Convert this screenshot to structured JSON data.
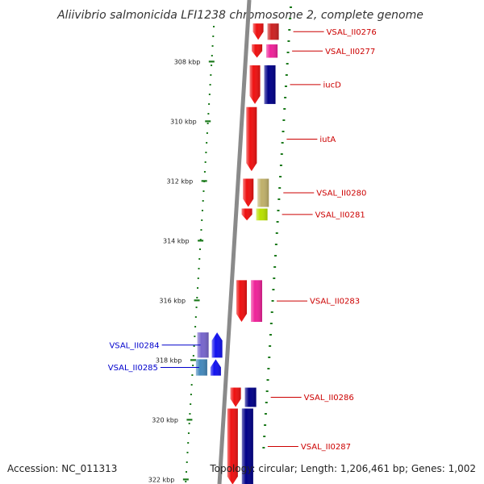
{
  "title": "Aliivibrio salmonicida LFI1238 chromosome 2, complete genome",
  "footer": {
    "accession": "Accession: NC_011313",
    "summary": "Topology: circular; Length: 1,206,461 bp; Genes: 1,002"
  },
  "colors": {
    "backbone": "#8a8a8a",
    "tick": "#1c7a1c",
    "label_forward": "#cc0000",
    "label_reverse": "#0000cc"
  },
  "axis": {
    "unit": "kbp",
    "range_kbp": [
      306.7,
      322.2
    ],
    "ticks": [
      {
        "kbp": 308,
        "label": "308 kbp"
      },
      {
        "kbp": 310,
        "label": "310 kbp"
      },
      {
        "kbp": 312,
        "label": "312 kbp"
      },
      {
        "kbp": 314,
        "label": "314 kbp"
      },
      {
        "kbp": 316,
        "label": "316 kbp"
      },
      {
        "kbp": 318,
        "label": "318 kbp"
      },
      {
        "kbp": 320,
        "label": "320 kbp"
      },
      {
        "kbp": 322,
        "label": "322 kbp"
      }
    ]
  },
  "genes": [
    {
      "id": "gene-vsal-ii0276",
      "label": "VSAL_II0276",
      "strand": "forward",
      "start_kbp": 306.7,
      "end_kbp": 307.3,
      "color": "#ee1111",
      "track_color": "#cc2222"
    },
    {
      "id": "gene-vsal-ii0277",
      "label": "VSAL_II0277",
      "strand": "forward",
      "start_kbp": 307.4,
      "end_kbp": 307.9,
      "color": "#ee1111",
      "track_color": "#ee2299"
    },
    {
      "id": "gene-iucd",
      "label": "iucD",
      "strand": "forward",
      "start_kbp": 308.1,
      "end_kbp": 309.45,
      "color": "#ee1111",
      "track_color": "#000088"
    },
    {
      "id": "gene-iuta",
      "label": "iutA",
      "strand": "forward",
      "start_kbp": 309.5,
      "end_kbp": 311.7,
      "color": "#ee1111",
      "track_color": null
    },
    {
      "id": "gene-vsal-ii0280",
      "label": "VSAL_II0280",
      "strand": "forward",
      "start_kbp": 311.9,
      "end_kbp": 312.9,
      "color": "#ee1111",
      "track_color": "#bfb06a"
    },
    {
      "id": "gene-vsal-ii0281",
      "label": "VSAL_II0281",
      "strand": "forward",
      "start_kbp": 312.9,
      "end_kbp": 313.35,
      "color": "#ee1111",
      "track_color": "#b8e000"
    },
    {
      "id": "gene-vsal-ii0283",
      "label": "VSAL_II0283",
      "strand": "forward",
      "start_kbp": 315.3,
      "end_kbp": 316.75,
      "color": "#ee1111",
      "track_color": "#ee2299"
    },
    {
      "id": "gene-vsal-ii0284",
      "label": "VSAL_II0284",
      "strand": "reverse",
      "start_kbp": 317.05,
      "end_kbp": 317.95,
      "color": "#1111ee",
      "track_color": "#7766cc"
    },
    {
      "id": "gene-vsal-ii0285",
      "label": "VSAL_II0285",
      "strand": "reverse",
      "start_kbp": 317.95,
      "end_kbp": 318.55,
      "color": "#1111ee",
      "track_color": "#4488bb"
    },
    {
      "id": "gene-vsal-ii0286",
      "label": "VSAL_II0286",
      "strand": "forward",
      "start_kbp": 318.9,
      "end_kbp": 319.6,
      "color": "#ee1111",
      "track_color": "#000088"
    },
    {
      "id": "gene-vsal-ii0287",
      "label": "VSAL_II0287",
      "strand": "forward",
      "start_kbp": 319.6,
      "end_kbp": 322.2,
      "color": "#ee1111",
      "track_color": "#000088"
    }
  ]
}
